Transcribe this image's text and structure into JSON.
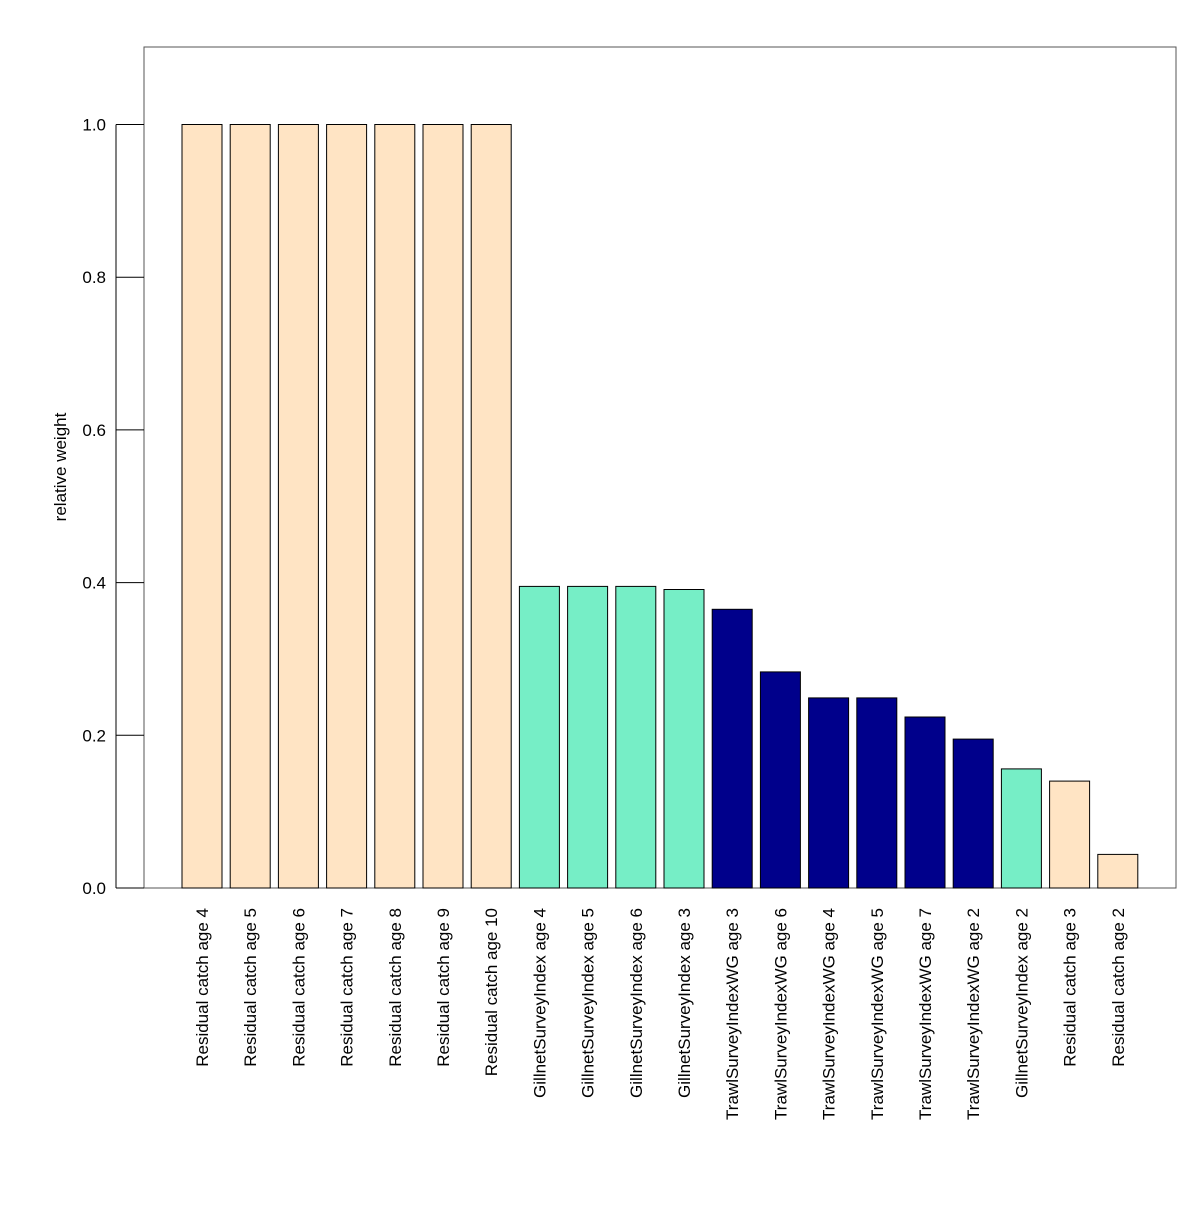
{
  "chart_data": {
    "type": "bar",
    "title": "",
    "xlabel": "",
    "ylabel": "relative weight",
    "ylim": [
      0,
      1.1
    ],
    "yticks": [
      "0.0",
      "0.2",
      "0.4",
      "0.6",
      "0.8",
      "1.0"
    ],
    "grid": false,
    "categories": [
      "Residual catch age 4",
      "Residual catch age 5",
      "Residual catch age 6",
      "Residual catch age 7",
      "Residual catch age 8",
      "Residual catch age 9",
      "Residual catch age 10",
      "GillnetSurveyIndex age 4",
      "GillnetSurveyIndex age 5",
      "GillnetSurveyIndex age 6",
      "GillnetSurveyIndex age 3",
      "TrawlSurveyIndexWG age 3",
      "TrawlSurveyIndexWG age 6",
      "TrawlSurveyIndexWG age 4",
      "TrawlSurveyIndexWG age 5",
      "TrawlSurveyIndexWG age 7",
      "TrawlSurveyIndexWG age 2",
      "GillnetSurveyIndex age 2",
      "Residual catch age 3",
      "Residual catch age 2"
    ],
    "values": [
      1.0,
      1.0,
      1.0,
      1.0,
      1.0,
      1.0,
      1.0,
      0.395,
      0.395,
      0.395,
      0.391,
      0.365,
      0.283,
      0.249,
      0.249,
      0.224,
      0.195,
      0.156,
      0.14,
      0.044
    ],
    "colors": {
      "Residual catch": "#ffe4c4",
      "GillnetSurveyIndex": "#76eec6",
      "TrawlSurveyIndexWG": "#00008b"
    }
  }
}
